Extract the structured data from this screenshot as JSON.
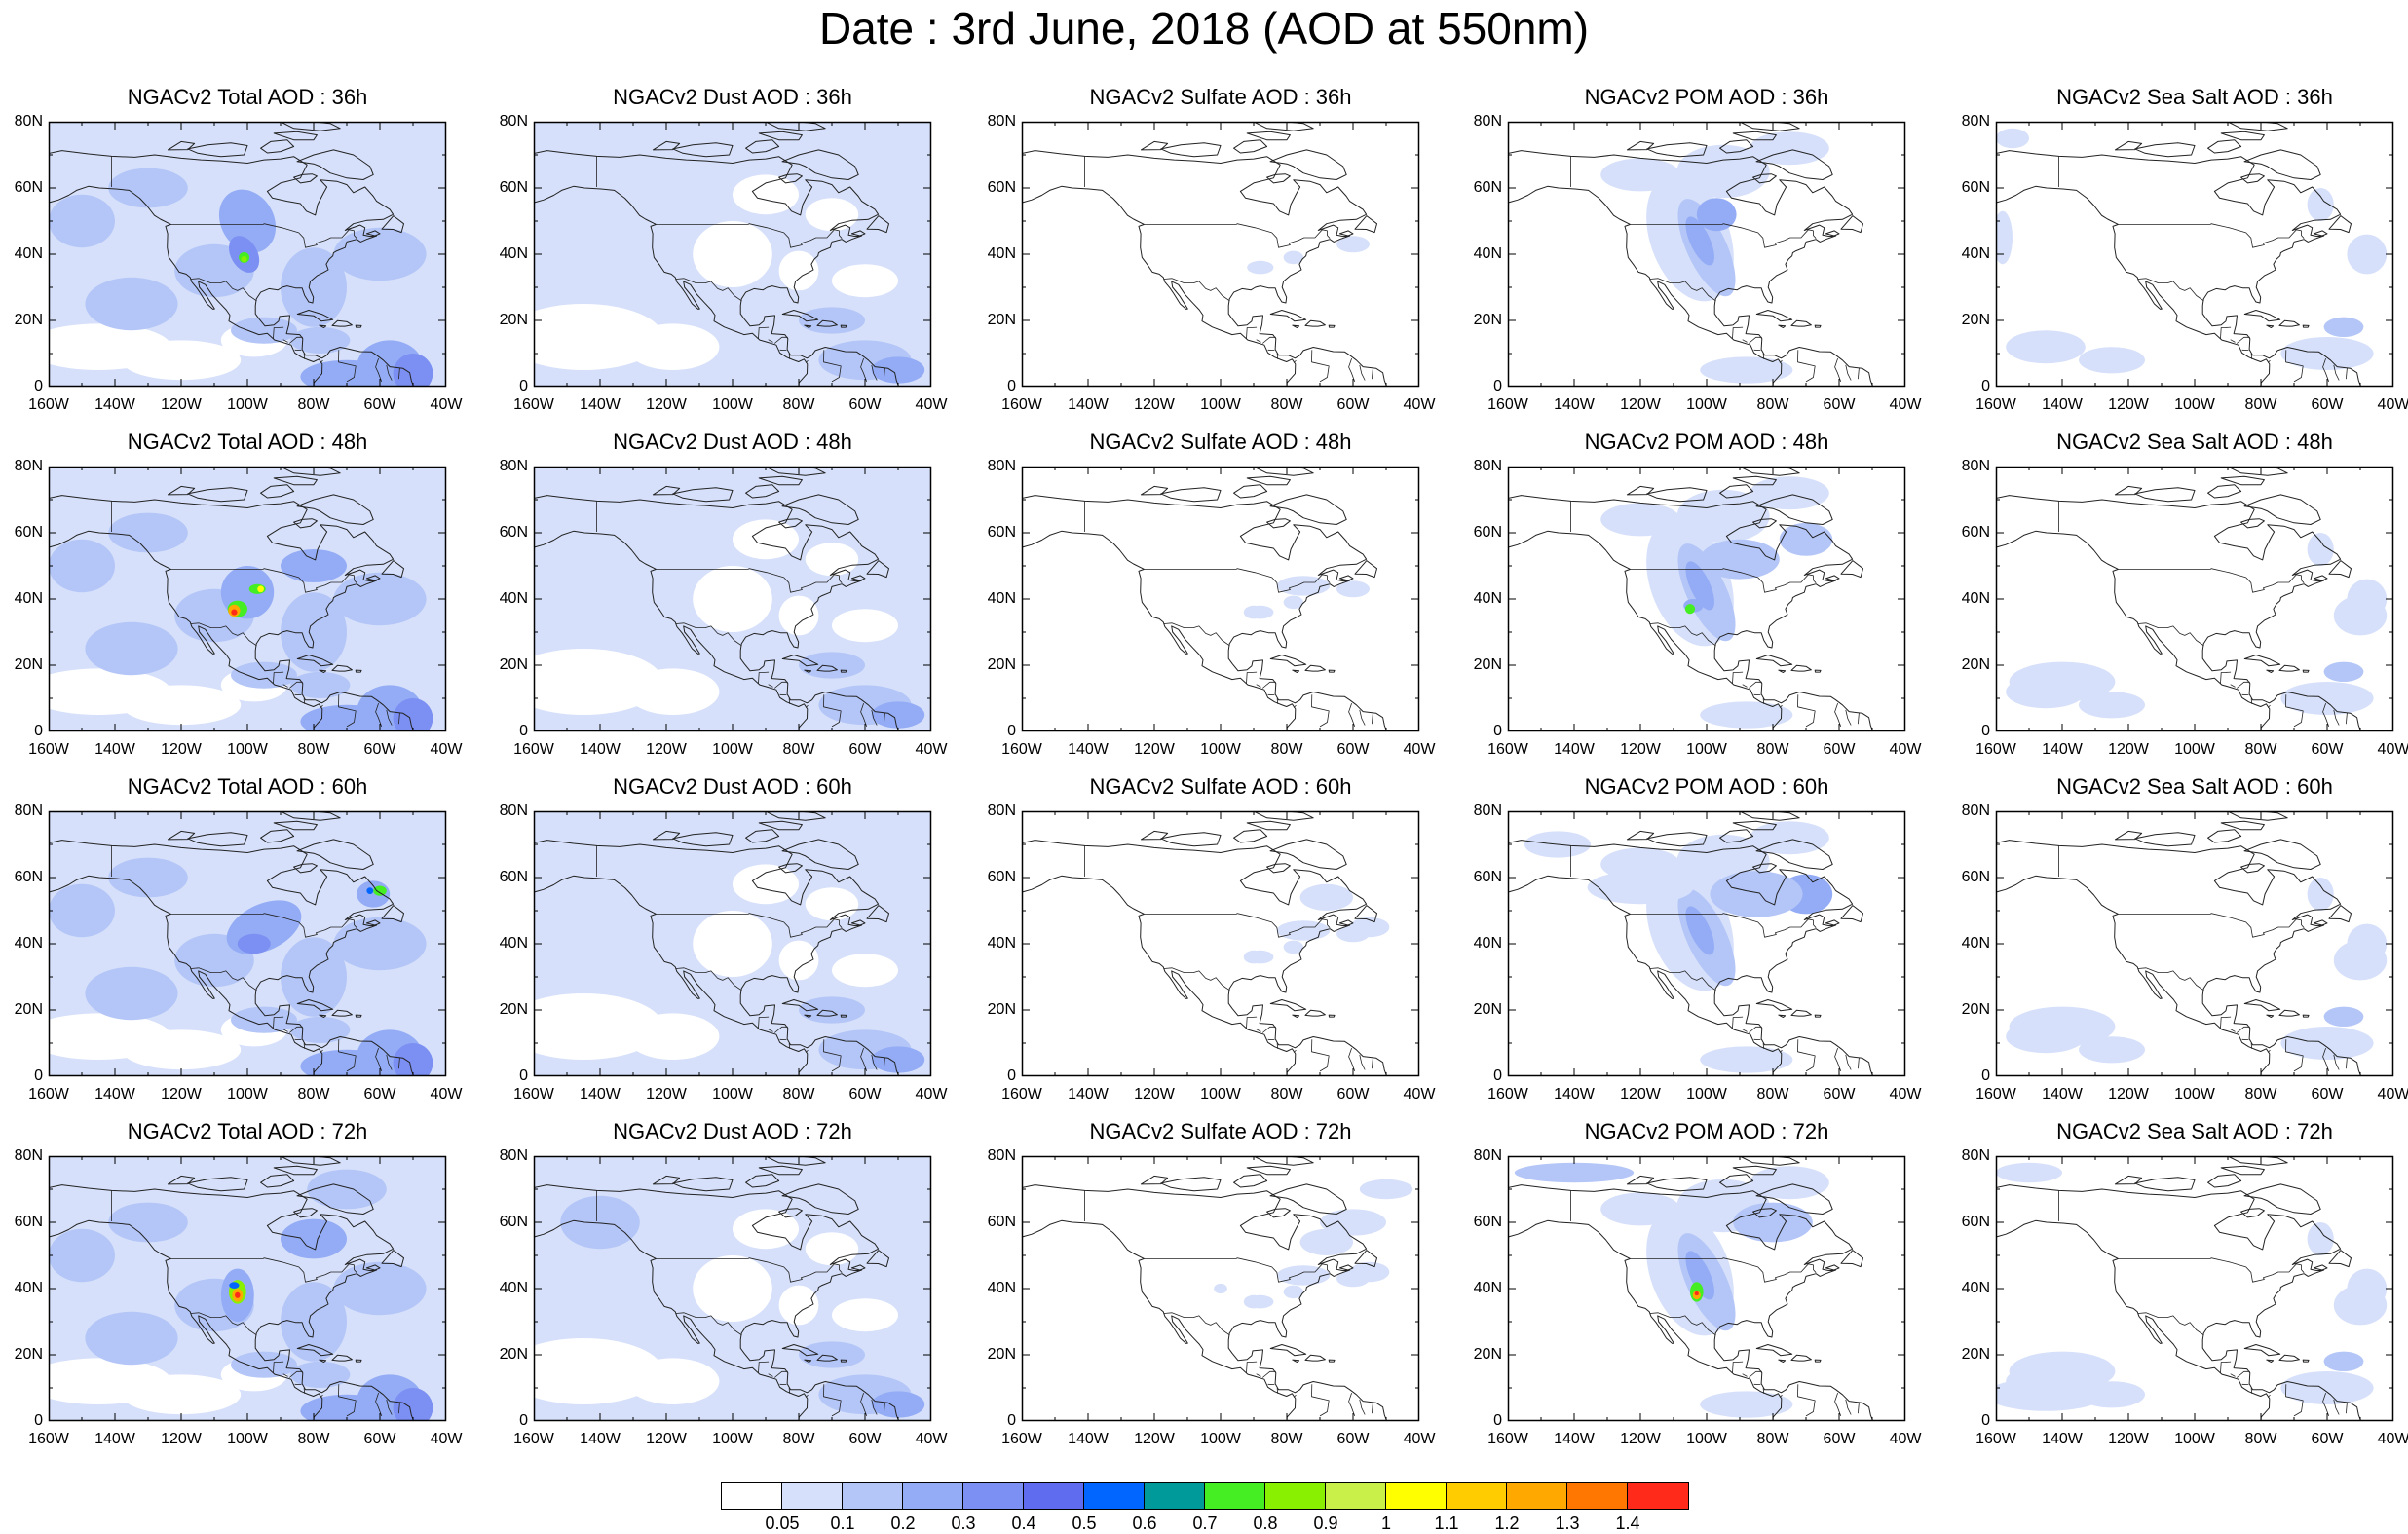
{
  "title": "Date : 3rd June, 2018 (AOD at 550nm)",
  "lat_ticks": [
    "80N",
    "60N",
    "40N",
    "20N",
    "0"
  ],
  "lon_ticks": [
    "160W",
    "140W",
    "120W",
    "100W",
    "80W",
    "60W",
    "40W"
  ],
  "panels": [
    {
      "title": "NGACv2 Total AOD : 36h",
      "species": "total",
      "hour": 36
    },
    {
      "title": "NGACv2 Dust AOD : 36h",
      "species": "dust",
      "hour": 36
    },
    {
      "title": "NGACv2 Sulfate AOD : 36h",
      "species": "sulfate",
      "hour": 36
    },
    {
      "title": "NGACv2 POM AOD : 36h",
      "species": "pom",
      "hour": 36
    },
    {
      "title": "NGACv2 Sea Salt AOD : 36h",
      "species": "seasalt",
      "hour": 36
    },
    {
      "title": "NGACv2 Total AOD : 48h",
      "species": "total",
      "hour": 48
    },
    {
      "title": "NGACv2 Dust AOD : 48h",
      "species": "dust",
      "hour": 48
    },
    {
      "title": "NGACv2 Sulfate AOD : 48h",
      "species": "sulfate",
      "hour": 48
    },
    {
      "title": "NGACv2 POM AOD : 48h",
      "species": "pom",
      "hour": 48
    },
    {
      "title": "NGACv2 Sea Salt AOD : 48h",
      "species": "seasalt",
      "hour": 48
    },
    {
      "title": "NGACv2 Total AOD : 60h",
      "species": "total",
      "hour": 60
    },
    {
      "title": "NGACv2 Dust AOD : 60h",
      "species": "dust",
      "hour": 60
    },
    {
      "title": "NGACv2 Sulfate AOD : 60h",
      "species": "sulfate",
      "hour": 60
    },
    {
      "title": "NGACv2 POM AOD : 60h",
      "species": "pom",
      "hour": 60
    },
    {
      "title": "NGACv2 Sea Salt AOD : 60h",
      "species": "seasalt",
      "hour": 60
    },
    {
      "title": "NGACv2 Total AOD : 72h",
      "species": "total",
      "hour": 72
    },
    {
      "title": "NGACv2 Dust AOD : 72h",
      "species": "dust",
      "hour": 72
    },
    {
      "title": "NGACv2 Sulfate AOD : 72h",
      "species": "sulfate",
      "hour": 72
    },
    {
      "title": "NGACv2 POM AOD : 72h",
      "species": "pom",
      "hour": 72
    },
    {
      "title": "NGACv2 Sea Salt  AOD : 72h",
      "species": "seasalt",
      "hour": 72
    }
  ],
  "colorbar": {
    "colors": [
      "#ffffff",
      "#d6e0fa",
      "#b4c6f7",
      "#93acf5",
      "#7c8ff2",
      "#5f6cf0",
      "#0066ff",
      "#009a9a",
      "#44ee22",
      "#88f000",
      "#c8f048",
      "#ffff00",
      "#ffcc00",
      "#ffa800",
      "#ff7700",
      "#ff2a1a"
    ],
    "labels": [
      "0.05",
      "0.1",
      "0.2",
      "0.3",
      "0.4",
      "0.5",
      "0.6",
      "0.7",
      "0.8",
      "0.9",
      "1",
      "1.1",
      "1.2",
      "1.3",
      "1.4"
    ]
  }
}
